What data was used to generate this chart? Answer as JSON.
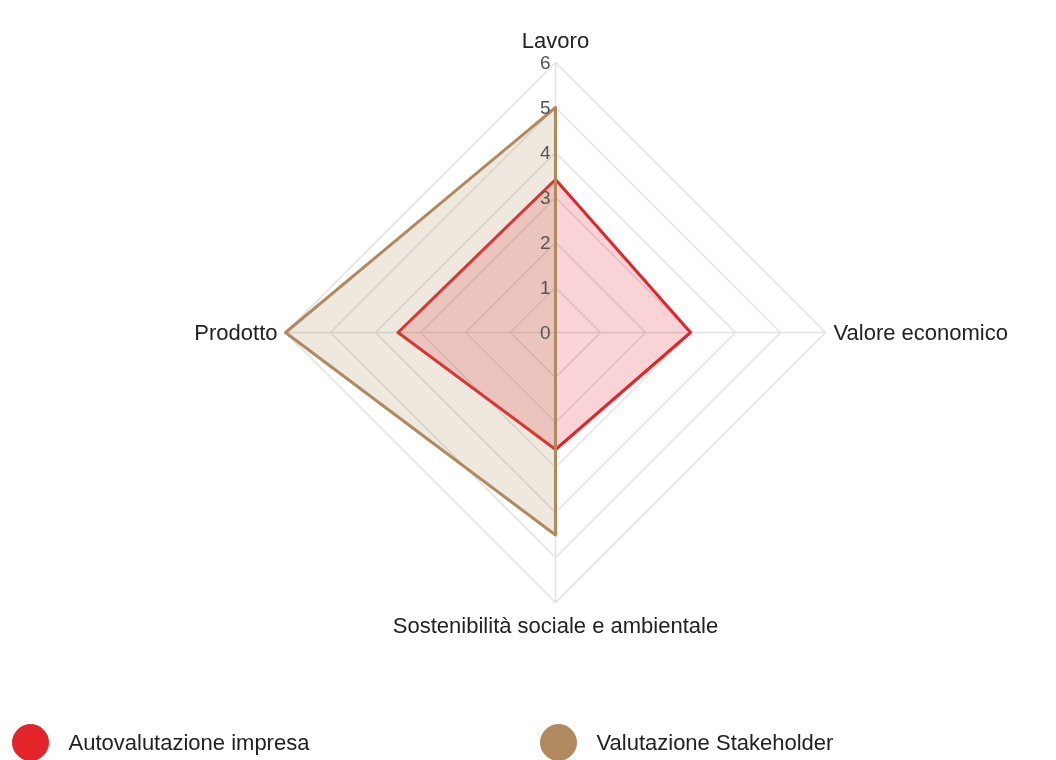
{
  "chart_data": {
    "type": "radar",
    "categories": [
      "Lavoro",
      "Valore economico",
      "Sostenibilità sociale e ambientale",
      "Prodotto"
    ],
    "series": [
      {
        "name": "Autovalutazione impresa",
        "color": "#e3242b",
        "values": [
          3.4,
          3.0,
          2.6,
          3.5
        ]
      },
      {
        "name": "Valutazione Stakeholder",
        "color": "#b08a5e",
        "values": [
          5.0,
          0,
          4.5,
          6.0
        ]
      }
    ],
    "ylim": [
      0,
      6
    ],
    "yticks": [
      0,
      1,
      2,
      3,
      4,
      5,
      6
    ],
    "grid": true,
    "legend": "bottom",
    "marker": "none"
  }
}
